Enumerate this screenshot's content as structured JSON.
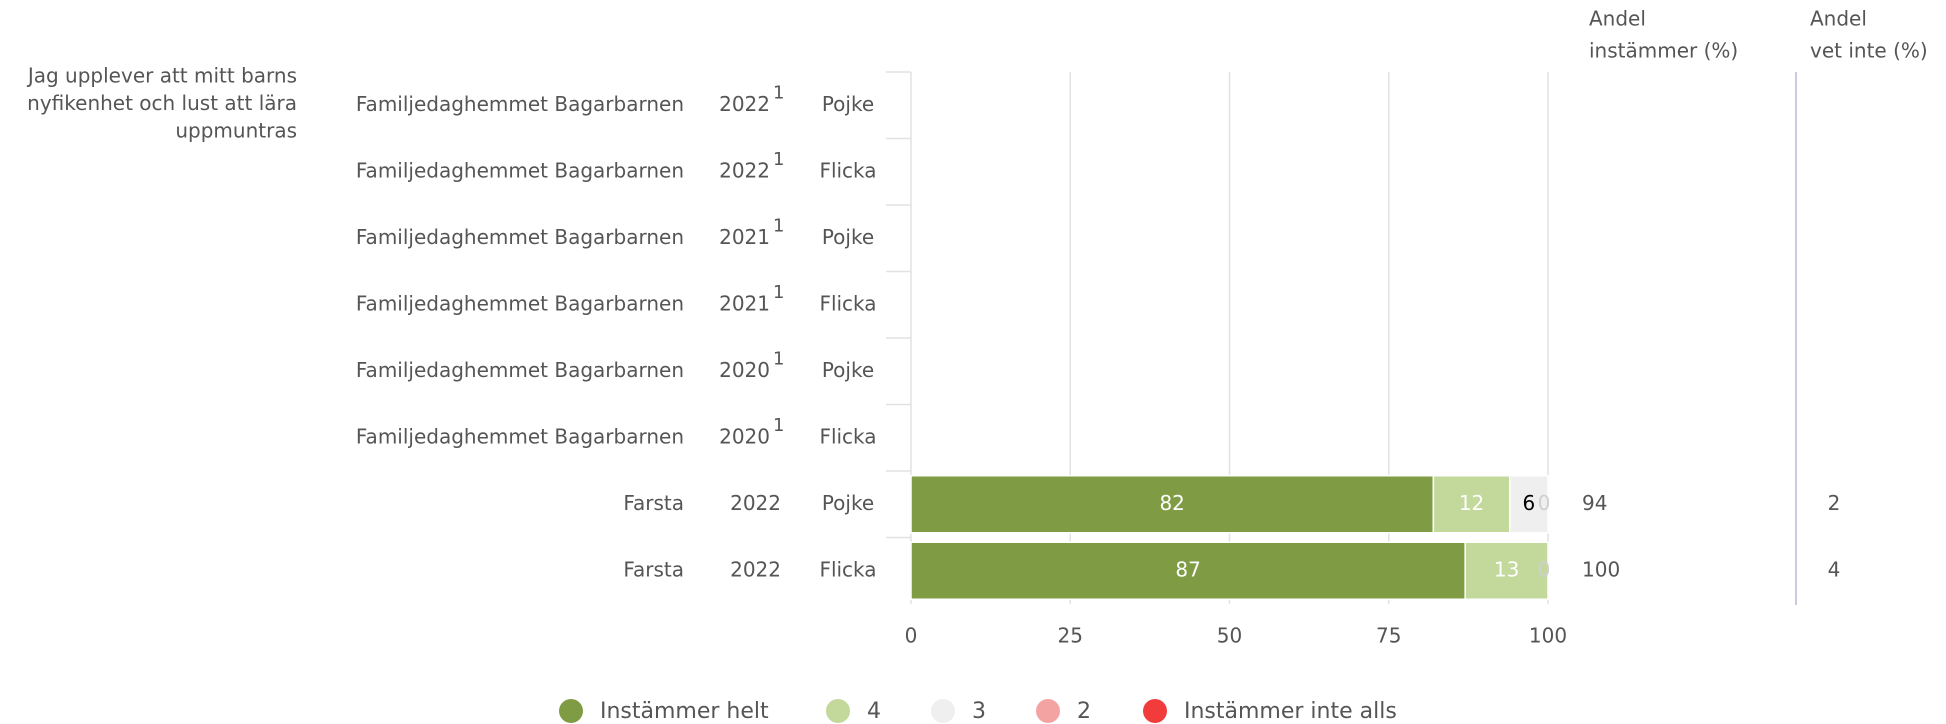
{
  "chart_data": {
    "type": "stacked-bar-horizontal",
    "question": [
      "Jag upplever att mitt barns",
      "nyfikenhet och lust att lära",
      "uppmuntras"
    ],
    "rows": [
      {
        "unit": "Familjedaghemmet Bagarbarnen",
        "year": "2022",
        "footnote": "1",
        "group": "Pojke"
      },
      {
        "unit": "Familjedaghemmet Bagarbarnen",
        "year": "2022",
        "footnote": "1",
        "group": "Flicka"
      },
      {
        "unit": "Familjedaghemmet Bagarbarnen",
        "year": "2021",
        "footnote": "1",
        "group": "Pojke"
      },
      {
        "unit": "Familjedaghemmet Bagarbarnen",
        "year": "2021",
        "footnote": "1",
        "group": "Flicka"
      },
      {
        "unit": "Familjedaghemmet Bagarbarnen",
        "year": "2020",
        "footnote": "1",
        "group": "Pojke"
      },
      {
        "unit": "Familjedaghemmet Bagarbarnen",
        "year": "2020",
        "footnote": "1",
        "group": "Flicka"
      },
      {
        "unit": "Farsta",
        "year": "2022",
        "footnote": null,
        "group": "Pojke"
      },
      {
        "unit": "Farsta",
        "year": "2022",
        "footnote": null,
        "group": "Flicka"
      }
    ],
    "series": [
      {
        "name": "Instämmer helt",
        "color": "#7f9c44",
        "label_color": "#ffffff",
        "values": [
          null,
          null,
          null,
          null,
          null,
          null,
          82,
          87
        ]
      },
      {
        "name": "4",
        "color": "#c3d89b",
        "label_color": "#ffffff",
        "values": [
          null,
          null,
          null,
          null,
          null,
          null,
          12,
          13
        ]
      },
      {
        "name": "3",
        "color": "#efefef",
        "label_color": "#000000",
        "values": [
          null,
          null,
          null,
          null,
          null,
          null,
          6,
          0
        ]
      },
      {
        "name": "2",
        "color": "#f4a3a3",
        "label_color": "#000000",
        "values": [
          null,
          null,
          null,
          null,
          null,
          null,
          0,
          null
        ]
      },
      {
        "name": "Instämmer inte alls",
        "color": "#f23c3c",
        "label_color": "#000000",
        "values": [
          null,
          null,
          null,
          null,
          null,
          null,
          null,
          null
        ]
      }
    ],
    "columns": [
      {
        "header": [
          "Andel",
          "instämmer (%)"
        ],
        "values": [
          null,
          null,
          null,
          null,
          null,
          null,
          94,
          100
        ]
      },
      {
        "header": [
          "Andel",
          "vet inte (%)"
        ],
        "values": [
          null,
          null,
          null,
          null,
          null,
          null,
          2,
          4
        ]
      }
    ],
    "xlim": [
      0,
      100
    ],
    "xticks": [
      0,
      25,
      50,
      75,
      100
    ],
    "grid": true
  }
}
